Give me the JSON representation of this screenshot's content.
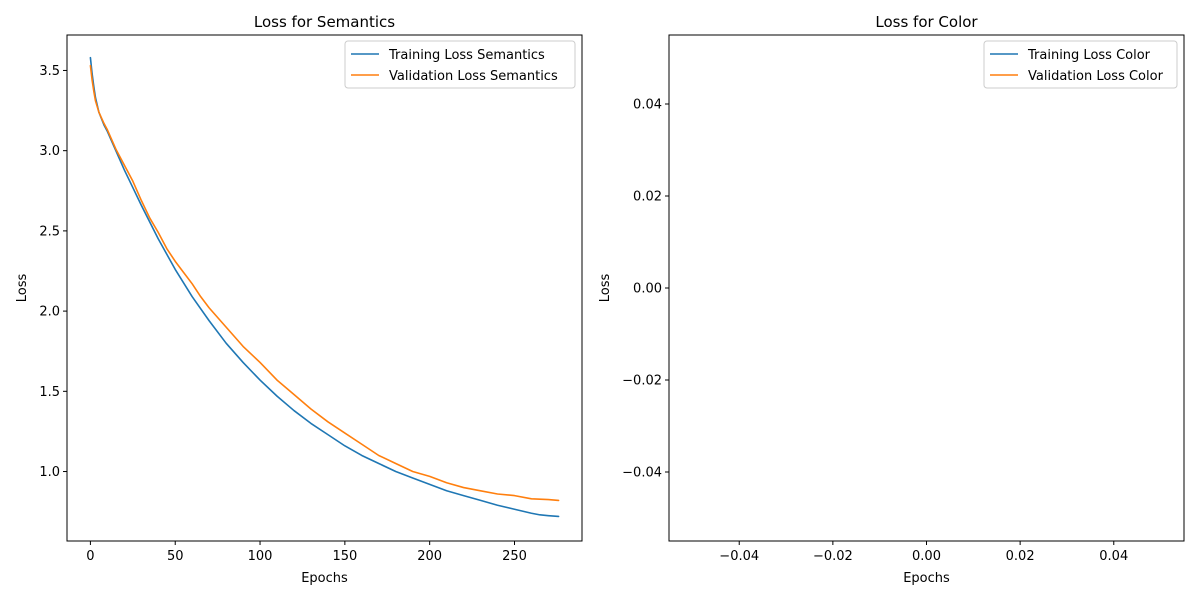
{
  "chart_data": [
    {
      "type": "line",
      "title": "Loss for Semantics",
      "xlabel": "Epochs",
      "ylabel": "Loss",
      "xlim": [
        -13.8,
        289.8
      ],
      "ylim": [
        0.567,
        3.721
      ],
      "xticks": [
        0,
        50,
        100,
        150,
        200,
        250
      ],
      "xtick_labels": [
        "0",
        "50",
        "100",
        "150",
        "200",
        "250"
      ],
      "yticks": [
        1.0,
        1.5,
        2.0,
        2.5,
        3.0,
        3.5
      ],
      "ytick_labels": [
        "1.0",
        "1.5",
        "2.0",
        "2.5",
        "3.0",
        "3.5"
      ],
      "grid": false,
      "legend_position": "top-right",
      "series": [
        {
          "name": "Training Loss Semantics",
          "color": "#1f77b4",
          "x": [
            0,
            1,
            2,
            3,
            5,
            8,
            10,
            15,
            20,
            25,
            30,
            40,
            50,
            60,
            70,
            80,
            90,
            100,
            110,
            120,
            130,
            140,
            150,
            160,
            170,
            180,
            190,
            200,
            210,
            220,
            230,
            240,
            250,
            260,
            265,
            270,
            276
          ],
          "y": [
            3.58,
            3.48,
            3.4,
            3.33,
            3.24,
            3.16,
            3.12,
            3.0,
            2.88,
            2.77,
            2.66,
            2.45,
            2.26,
            2.09,
            1.94,
            1.8,
            1.68,
            1.57,
            1.47,
            1.38,
            1.3,
            1.23,
            1.16,
            1.1,
            1.05,
            1.0,
            0.96,
            0.92,
            0.88,
            0.85,
            0.82,
            0.79,
            0.765,
            0.74,
            0.73,
            0.725,
            0.72
          ]
        },
        {
          "name": "Validation Loss Semantics",
          "color": "#ff7f0e",
          "x": [
            0,
            1,
            2,
            3,
            5,
            8,
            10,
            15,
            20,
            25,
            30,
            35,
            40,
            45,
            50,
            55,
            60,
            65,
            70,
            75,
            80,
            85,
            90,
            95,
            100,
            110,
            120,
            130,
            140,
            150,
            160,
            170,
            180,
            190,
            200,
            210,
            220,
            230,
            240,
            250,
            260,
            270,
            276
          ],
          "y": [
            3.53,
            3.44,
            3.37,
            3.31,
            3.24,
            3.17,
            3.13,
            3.01,
            2.91,
            2.81,
            2.69,
            2.58,
            2.49,
            2.39,
            2.31,
            2.24,
            2.17,
            2.09,
            2.02,
            1.96,
            1.9,
            1.84,
            1.78,
            1.73,
            1.68,
            1.57,
            1.48,
            1.39,
            1.31,
            1.24,
            1.17,
            1.1,
            1.05,
            1.0,
            0.97,
            0.93,
            0.9,
            0.88,
            0.86,
            0.85,
            0.83,
            0.825,
            0.82
          ]
        }
      ]
    },
    {
      "type": "line",
      "title": "Loss for Color",
      "xlabel": "Epochs",
      "ylabel": "Loss",
      "xlim": [
        -0.055,
        0.055
      ],
      "ylim": [
        -0.055,
        0.055
      ],
      "xticks": [
        -0.04,
        -0.02,
        0.0,
        0.02,
        0.04
      ],
      "xtick_labels": [
        "−0.04",
        "−0.02",
        "0.00",
        "0.02",
        "0.04"
      ],
      "yticks": [
        -0.04,
        -0.02,
        0.0,
        0.02,
        0.04
      ],
      "ytick_labels": [
        "−0.04",
        "−0.02",
        "0.00",
        "0.02",
        "0.04"
      ],
      "grid": false,
      "legend_position": "top-right",
      "series": [
        {
          "name": "Training Loss Color",
          "color": "#1f77b4",
          "x": [],
          "y": []
        },
        {
          "name": "Validation Loss Color",
          "color": "#ff7f0e",
          "x": [],
          "y": []
        }
      ]
    }
  ]
}
